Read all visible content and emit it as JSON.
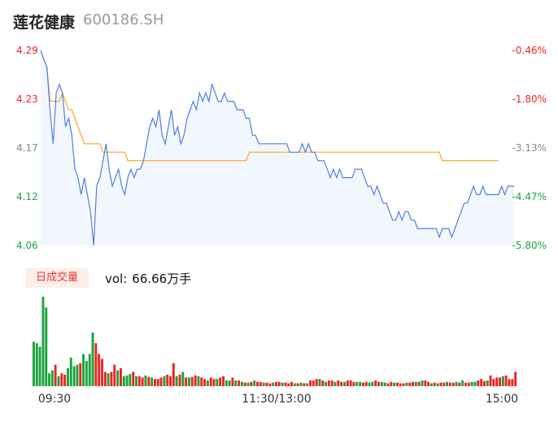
{
  "header": {
    "name": "莲花健康",
    "code": "600186.SH"
  },
  "volume_panel": {
    "badge": "日成交量",
    "vol_label": "vol:",
    "vol_value": "66.66万手"
  },
  "colors": {
    "price_line": "#4d7fe3",
    "avg_line": "#f5a623",
    "area_fill": "#f2f6fd",
    "up": "#ee2222",
    "down": "#1aa33a",
    "left_up": "#ee2222",
    "left_down": "#1aa33a",
    "neutral": "#888888"
  },
  "chart_data": [
    {
      "type": "line",
      "title": "",
      "y_left_ticks": [
        "4.29",
        "4.23",
        "4.17",
        "4.12",
        "4.06"
      ],
      "y_right_ticks": [
        "-0.46%",
        "-1.80%",
        "-3.13%",
        "-4.47%",
        "-5.80%"
      ],
      "ylim": [
        4.06,
        4.29
      ],
      "grid": false,
      "series": [
        {
          "values": [
            4.29,
            4.28,
            4.27,
            4.22,
            4.18,
            4.24,
            4.25,
            4.24,
            4.2,
            4.21,
            4.19,
            4.15,
            4.14,
            4.12,
            4.14,
            4.12,
            4.1,
            4.06,
            4.13,
            4.14,
            4.16,
            4.18,
            4.15,
            4.13,
            4.14,
            4.15,
            4.13,
            4.12,
            4.14,
            4.15,
            4.14,
            4.15,
            4.15,
            4.16,
            4.18,
            4.2,
            4.21,
            4.2,
            4.22,
            4.19,
            4.18,
            4.2,
            4.22,
            4.19,
            4.2,
            4.18,
            4.19,
            4.21,
            4.22,
            4.23,
            4.22,
            4.24,
            4.23,
            4.24,
            4.23,
            4.25,
            4.24,
            4.23,
            4.23,
            4.24,
            4.23,
            4.23,
            4.23,
            4.22,
            4.22,
            4.22,
            4.21,
            4.21,
            4.19,
            4.19,
            4.18,
            4.18,
            4.18,
            4.18,
            4.18,
            4.18,
            4.18,
            4.18,
            4.18,
            4.18,
            4.17,
            4.17,
            4.17,
            4.17,
            4.18,
            4.17,
            4.18,
            4.17,
            4.17,
            4.16,
            4.16,
            4.16,
            4.15,
            4.14,
            4.15,
            4.14,
            4.15,
            4.14,
            4.14,
            4.14,
            4.14,
            4.15,
            4.15,
            4.15,
            4.14,
            4.13,
            4.13,
            4.12,
            4.13,
            4.12,
            4.11,
            4.11,
            4.1,
            4.09,
            4.09,
            4.1,
            4.09,
            4.1,
            4.1,
            4.09,
            4.09,
            4.08,
            4.08,
            4.08,
            4.08,
            4.08,
            4.08,
            4.08,
            4.07,
            4.08,
            4.08,
            4.08,
            4.07,
            4.08,
            4.09,
            4.1,
            4.11,
            4.11,
            4.12,
            4.13,
            4.12,
            4.12,
            4.13,
            4.12,
            4.12,
            4.12,
            4.12,
            4.12,
            4.13,
            4.12,
            4.13,
            4.13,
            4.13
          ]
        },
        {
          "values": [
            4.29,
            4.28,
            4.27,
            4.23,
            4.23,
            4.23,
            4.23,
            4.24,
            4.23,
            4.22,
            4.22,
            4.21,
            4.2,
            4.19,
            4.18,
            4.18,
            4.18,
            4.18,
            4.18,
            4.18,
            4.17,
            4.17,
            4.17,
            4.17,
            4.17,
            4.17,
            4.17,
            4.17,
            4.16,
            4.16,
            4.16,
            4.16,
            4.16,
            4.16,
            4.16,
            4.16,
            4.16,
            4.16,
            4.16,
            4.16,
            4.16,
            4.16,
            4.16,
            4.16,
            4.16,
            4.16,
            4.16,
            4.16,
            4.16,
            4.16,
            4.16,
            4.16,
            4.16,
            4.16,
            4.16,
            4.16,
            4.16,
            4.16,
            4.16,
            4.16,
            4.16,
            4.16,
            4.16,
            4.16,
            4.16,
            4.16,
            4.16,
            4.17,
            4.17,
            4.17,
            4.17,
            4.17,
            4.17,
            4.17,
            4.17,
            4.17,
            4.17,
            4.17,
            4.17,
            4.17,
            4.17,
            4.17,
            4.17,
            4.17,
            4.17,
            4.17,
            4.17,
            4.17,
            4.17,
            4.17,
            4.17,
            4.17,
            4.17,
            4.17,
            4.17,
            4.17,
            4.17,
            4.17,
            4.17,
            4.17,
            4.17,
            4.17,
            4.17,
            4.17,
            4.17,
            4.17,
            4.17,
            4.17,
            4.17,
            4.17,
            4.17,
            4.17,
            4.17,
            4.17,
            4.17,
            4.17,
            4.17,
            4.17,
            4.17,
            4.17,
            4.17,
            4.17,
            4.17,
            4.17,
            4.17,
            4.17,
            4.17,
            4.17,
            4.17,
            4.16,
            4.16,
            4.16,
            4.16,
            4.16,
            4.16,
            4.16,
            4.16,
            4.16,
            4.16,
            4.16,
            4.16,
            4.16,
            4.16,
            4.16,
            4.16,
            4.16,
            4.16,
            4.16
          ]
        }
      ]
    },
    {
      "type": "bar",
      "x_ticks": [
        "09:30",
        "11:30/13:00",
        "15:00"
      ],
      "values": [
        62,
        60,
        55,
        125,
        110,
        18,
        22,
        30,
        14,
        18,
        16,
        25,
        40,
        28,
        30,
        32,
        45,
        35,
        45,
        75,
        60,
        45,
        38,
        20,
        18,
        20,
        30,
        22,
        25,
        14,
        15,
        17,
        20,
        14,
        14,
        12,
        15,
        13,
        12,
        10,
        10,
        12,
        14,
        16,
        14,
        32,
        14,
        16,
        20,
        12,
        12,
        13,
        15,
        14,
        12,
        10,
        8,
        12,
        10,
        10,
        12,
        14,
        8,
        8,
        12,
        8,
        8,
        6,
        5,
        5,
        6,
        8,
        6,
        6,
        5,
        5,
        4,
        5,
        6,
        6,
        5,
        5,
        4,
        6,
        4,
        4,
        5,
        4,
        4,
        8,
        8,
        10,
        10,
        8,
        6,
        8,
        8,
        6,
        8,
        6,
        6,
        8,
        8,
        6,
        6,
        6,
        5,
        6,
        5,
        6,
        8,
        6,
        6,
        5,
        4,
        6,
        5,
        5,
        4,
        4,
        5,
        5,
        6,
        6,
        6,
        8,
        8,
        6,
        4,
        5,
        4,
        5,
        5,
        6,
        5,
        5,
        6,
        5,
        8,
        5,
        5,
        6,
        6,
        8,
        10,
        7,
        8,
        15,
        10,
        12,
        12,
        14,
        15,
        10,
        10,
        20
      ],
      "colors": [
        "down",
        "down",
        "down",
        "down",
        "down",
        "down",
        "down",
        "up",
        "down",
        "up",
        "up",
        "down",
        "down",
        "down",
        "down",
        "up",
        "down",
        "down",
        "down",
        "down",
        "up",
        "up",
        "up",
        "up",
        "down",
        "up",
        "up",
        "down",
        "up",
        "down",
        "down",
        "down",
        "up",
        "down",
        "up",
        "up",
        "down",
        "up",
        "down",
        "up",
        "up",
        "up",
        "down",
        "up",
        "up",
        "up",
        "down",
        "up",
        "down",
        "up",
        "down",
        "up",
        "up",
        "down",
        "up",
        "up",
        "down",
        "up",
        "up",
        "down",
        "up",
        "up",
        "down",
        "down",
        "up",
        "down",
        "up",
        "down",
        "up",
        "down",
        "up",
        "down",
        "up",
        "up",
        "down",
        "up",
        "up",
        "down",
        "up",
        "up",
        "down",
        "up",
        "up",
        "up",
        "down",
        "up",
        "down",
        "up",
        "down",
        "up",
        "up",
        "up",
        "down",
        "up",
        "down",
        "up",
        "up",
        "down",
        "up",
        "up",
        "down",
        "up",
        "up",
        "up",
        "down",
        "down",
        "up",
        "up",
        "down",
        "down",
        "up",
        "up",
        "down",
        "down",
        "up",
        "up",
        "down",
        "up",
        "up",
        "up",
        "down",
        "up",
        "up",
        "down",
        "up",
        "down",
        "up",
        "up",
        "down",
        "up",
        "down",
        "up",
        "up",
        "down",
        "up",
        "up",
        "down",
        "up",
        "down",
        "up",
        "up",
        "down",
        "down",
        "up",
        "up",
        "up",
        "down",
        "up",
        "up",
        "up",
        "up",
        "down",
        "up",
        "up",
        "up",
        "up"
      ]
    }
  ]
}
